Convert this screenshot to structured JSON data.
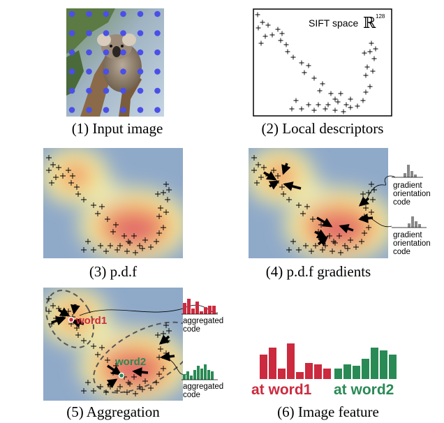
{
  "captions": {
    "p1": "(1) Input image",
    "p2": "(2) Local descriptors",
    "p3": "(3) p.d.f",
    "p4": "(4) p.d.f gradients",
    "p5": "(5) Aggregation",
    "p6": "(6) Image feature"
  },
  "panel2": {
    "space_label": "SIFT space",
    "space_symbol": "ℝ",
    "space_dim": "128"
  },
  "panel4": {
    "annotation_1": [
      "gradient",
      "orientation",
      "code"
    ],
    "annotation_2": [
      "gradient",
      "orientation",
      "code"
    ]
  },
  "panel5": {
    "word1": "word1",
    "word2": "word2",
    "annotation_1": [
      "aggregated",
      "code"
    ],
    "annotation_2": [
      "aggregated",
      "code"
    ]
  },
  "panel6": {
    "label_word1": "at word1",
    "label_word2": "at word2"
  },
  "colors": {
    "word1_red": "#cc2a3e",
    "word2_green": "#2a8a55",
    "grid_dot_blue": "#4a4fe8",
    "gray_bar": "#888888"
  }
}
